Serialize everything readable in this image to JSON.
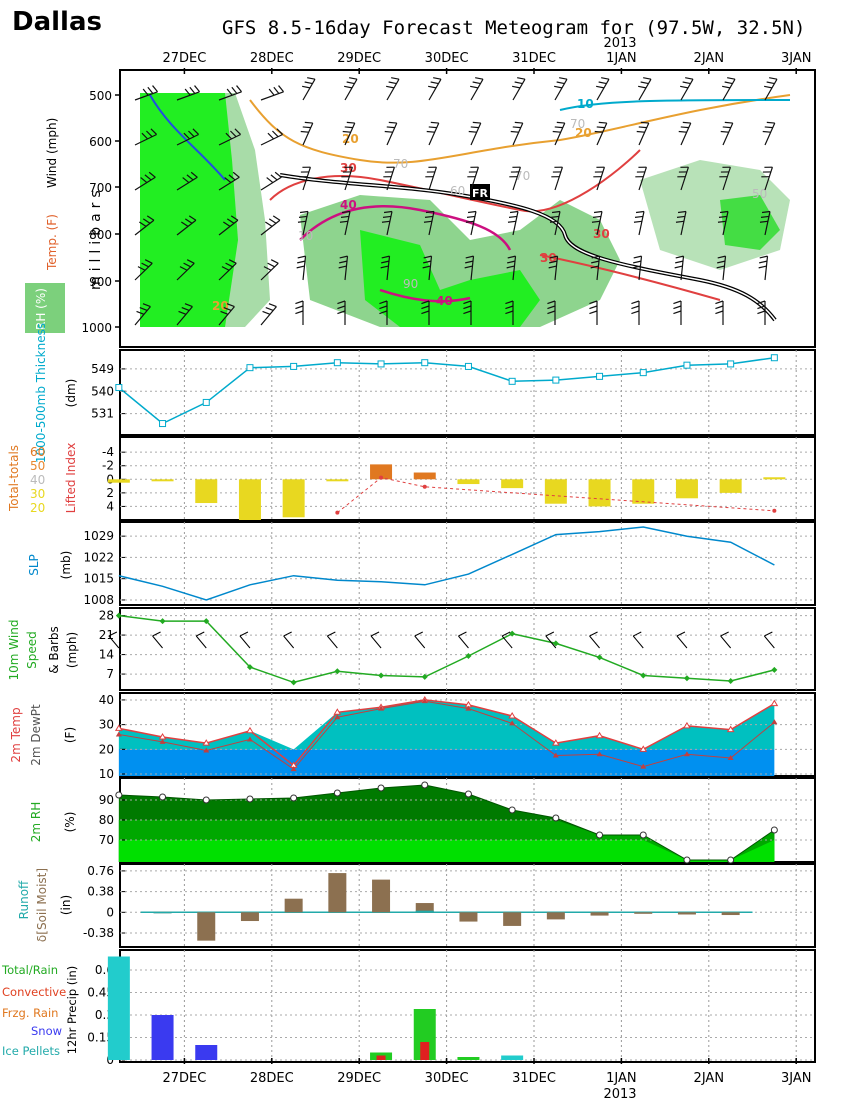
{
  "header": {
    "station": "Dallas",
    "title": "GFS 8.5-16day Forecast Meteogram for (97.5W, 32.5N)",
    "year": "2013"
  },
  "x_axis": {
    "dates": [
      "27DEC",
      "28DEC",
      "29DEC",
      "30DEC",
      "31DEC",
      "1JAN",
      "2JAN",
      "3JAN"
    ],
    "year_label": "2013"
  },
  "colors": {
    "thickness": "#00aacc",
    "slp": "#0088cc",
    "wind": "#22aa22",
    "li_yellow": "#e8d820",
    "li_orange": "#e07820",
    "temp_fill": "#00c0c0",
    "dew_fill": "#0090f0",
    "rh_dark": "#007a00",
    "rh_mid": "#00a800",
    "rh_light": "#00e000",
    "runoff_bar": "#8c7050",
    "rain_green": "#22cc22",
    "conv_red": "#e02020",
    "snow_blue": "#3a3af0",
    "ice_cyan": "#22cccc"
  },
  "chart_data": [
    {
      "type": "heatmap",
      "name": "upper-air",
      "labels": {
        "wind": "Wind (mph)",
        "temp": "Temp. (F)",
        "rh": "RH (%)",
        "units": "millibars",
        "level_ticks": [
          "500",
          "600",
          "700",
          "800",
          "900",
          "1000"
        ],
        "isotherms": [
          "10",
          "20",
          "30",
          "40",
          "50",
          "60",
          "70",
          "90",
          "FR"
        ]
      }
    },
    {
      "type": "line",
      "name": "thickness",
      "ylabel": "1000-500mb Thickness",
      "unit": "(dm)",
      "yticks": [
        "549",
        "540",
        "531"
      ],
      "ylim": [
        524,
        555
      ],
      "x": [
        0.25,
        0.75,
        1.25,
        1.75,
        2.25,
        2.75,
        3.25,
        3.75,
        4.25,
        4.75,
        5.25,
        5.75,
        6.25,
        6.75,
        7.25,
        7.75
      ],
      "values": [
        541.5,
        527,
        535.5,
        549.5,
        550,
        551.5,
        551,
        551.5,
        550,
        544,
        544.5,
        546,
        547.5,
        550.5,
        551,
        553.5
      ]
    },
    {
      "type": "bar",
      "name": "stability",
      "labels": {
        "tt_title": "Total-totals",
        "li_title": "Lifted Index",
        "tt_60": "60",
        "tt_50": "50",
        "tt_40": "40",
        "tt_30": "30",
        "tt_20": "20"
      },
      "yticks": [
        "-4",
        "-2",
        "0",
        "2",
        "4"
      ],
      "ylim": [
        -5.5,
        6
      ],
      "x": [
        0.25,
        0.75,
        1.25,
        1.75,
        2.25,
        2.75,
        3.25,
        3.75,
        4.25,
        4.75,
        5.25,
        5.75,
        6.25,
        6.75,
        7.25,
        7.75
      ],
      "lifted_index": [
        0.5,
        0.2,
        3.5,
        6.2,
        5.6,
        0.2,
        -2.2,
        -1.0,
        0.7,
        1.3,
        3.6,
        4.0,
        3.6,
        2.8,
        2.0,
        -0.3
      ],
      "total_totals": [
        null,
        null,
        null,
        null,
        null,
        19,
        38,
        33,
        null,
        null,
        null,
        null,
        null,
        null,
        null,
        20
      ]
    },
    {
      "type": "line",
      "name": "slp",
      "ylabel": "SLP",
      "unit": "(mb)",
      "yticks": [
        "1029",
        "1022",
        "1015",
        "1008"
      ],
      "ylim": [
        1007,
        1033
      ],
      "x": [
        0.25,
        0.75,
        1.25,
        1.75,
        2.25,
        2.75,
        3.25,
        3.75,
        4.25,
        4.75,
        5.25,
        5.75,
        6.25,
        6.75,
        7.25,
        7.75
      ],
      "values": [
        1016,
        1012.5,
        1008,
        1013,
        1016,
        1014.5,
        1014,
        1013,
        1016.5,
        1023,
        1029.5,
        1030.5,
        1032,
        1029,
        1027,
        1019.5
      ]
    },
    {
      "type": "line",
      "name": "wind10m",
      "ylabel": "10m Wind Speed & Barbs",
      "unit": "(mph)",
      "yticks": [
        "28",
        "21",
        "14",
        "7"
      ],
      "ylim": [
        2,
        30
      ],
      "x": [
        0.25,
        0.75,
        1.25,
        1.75,
        2.25,
        2.75,
        3.25,
        3.75,
        4.25,
        4.75,
        5.25,
        5.75,
        6.25,
        6.75,
        7.25,
        7.75
      ],
      "values": [
        28,
        26,
        26,
        9.5,
        4,
        8,
        6.5,
        6,
        13.5,
        21.5,
        18,
        13,
        6.5,
        5.5,
        4.5,
        8.5
      ]
    },
    {
      "type": "area",
      "name": "temperature",
      "ylabel": "2m Temp",
      "ylabel2": "2m DewPt",
      "unit": "(F)",
      "yticks": [
        "40",
        "30",
        "20",
        "10"
      ],
      "ylim": [
        10,
        42
      ],
      "x": [
        0.25,
        0.75,
        1.25,
        1.75,
        2.25,
        2.75,
        3.25,
        3.75,
        4.25,
        4.75,
        5.25,
        5.75,
        6.25,
        6.75,
        7.25,
        7.75
      ],
      "series": [
        {
          "name": "2m Temp",
          "values": [
            28.5,
            25,
            22.5,
            27.5,
            13.5,
            35,
            37,
            40,
            38,
            33.5,
            22.5,
            25.5,
            20,
            29.5,
            28,
            38.5
          ]
        },
        {
          "name": "2m DewPt",
          "values": [
            26,
            23,
            19.5,
            24,
            12,
            33,
            36.5,
            39.5,
            36.5,
            30.5,
            17.5,
            18,
            13,
            18,
            16.5,
            31
          ]
        }
      ]
    },
    {
      "type": "area",
      "name": "rh",
      "ylabel": "2m RH",
      "unit": "(%)",
      "yticks": [
        "90",
        "80",
        "70"
      ],
      "ylim": [
        60,
        100
      ],
      "x": [
        0.25,
        0.75,
        1.25,
        1.75,
        2.25,
        2.75,
        3.25,
        3.75,
        4.25,
        4.75,
        5.25,
        5.75,
        6.25,
        6.75,
        7.25,
        7.75
      ],
      "values": [
        92.5,
        91.5,
        90,
        90.5,
        91,
        93.5,
        96,
        97.5,
        93,
        85,
        81,
        72.5,
        72.5,
        60,
        60,
        75
      ]
    },
    {
      "type": "bar",
      "name": "runoff",
      "ylabel": "Runoff",
      "ylabel2": "δ[Soil Moist]",
      "unit": "(in)",
      "yticks": [
        "0.76",
        "0.38",
        "0",
        "-0.38"
      ],
      "ylim": [
        -0.6,
        0.85
      ],
      "x": [
        0.25,
        0.75,
        1.25,
        1.75,
        2.25,
        2.75,
        3.25,
        3.75,
        4.25,
        4.75,
        5.25,
        5.75,
        6.25,
        6.75,
        7.25,
        7.75
      ],
      "soil_moisture": [
        null,
        0.01,
        -0.52,
        -0.16,
        0.25,
        0.72,
        0.6,
        0.17,
        -0.17,
        -0.25,
        -0.13,
        -0.06,
        -0.02,
        -0.04,
        -0.05,
        null
      ],
      "runoff": [
        null,
        0.01,
        null,
        null,
        null,
        null,
        null,
        0.03,
        null,
        null,
        null,
        null,
        null,
        null,
        null,
        null
      ]
    },
    {
      "type": "bar",
      "name": "precip",
      "ylabel": "12hr Precip (in)",
      "legend": [
        "Total/Rain",
        "Convective",
        "Frzg. Rain",
        "Snow",
        "Ice Pellets"
      ],
      "yticks": [
        "0.6",
        "0.45",
        "0.3",
        "0.15",
        "0"
      ],
      "ylim": [
        0,
        0.72
      ],
      "x": [
        0.25,
        0.75,
        1.25,
        1.75,
        2.25,
        2.75,
        3.25,
        3.75,
        4.25,
        4.75,
        5.25,
        5.75,
        6.25,
        6.75,
        7.25,
        7.75
      ],
      "bars": [
        {
          "x": 0.25,
          "type": "ice",
          "value": 0.69
        },
        {
          "x": 0.75,
          "type": "snow",
          "value": 0.3
        },
        {
          "x": 1.25,
          "type": "snow",
          "value": 0.1
        },
        {
          "x": 3.25,
          "type": "rain",
          "value": 0.05
        },
        {
          "x": 3.25,
          "type": "conv",
          "value": 0.03
        },
        {
          "x": 3.75,
          "type": "rain",
          "value": 0.34
        },
        {
          "x": 3.75,
          "type": "conv",
          "value": 0.12
        },
        {
          "x": 4.25,
          "type": "rain",
          "value": 0.02
        },
        {
          "x": 4.75,
          "type": "ice",
          "value": 0.03
        }
      ]
    }
  ]
}
